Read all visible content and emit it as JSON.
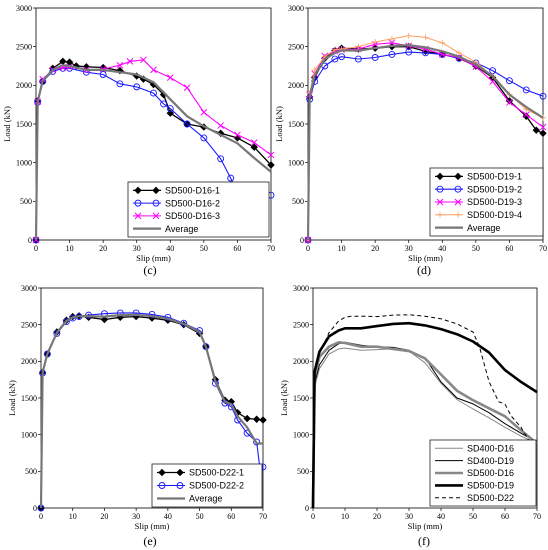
{
  "charts": [
    {
      "panel": "(c)",
      "type": "line",
      "xlabel": "Slip (mm)",
      "ylabel": "Load (kN)",
      "xlim": [
        0,
        70
      ],
      "ylim": [
        0,
        3000
      ],
      "xstep": 10,
      "ystep": 500,
      "series": [
        {
          "name": "SD500-D16-1",
          "color": "#000000",
          "marker": "diamond",
          "width": 1.3,
          "x": [
            0,
            0.5,
            2,
            5,
            8,
            10,
            12,
            15,
            20,
            25,
            30,
            32,
            35,
            38,
            40,
            45,
            50,
            55,
            60,
            65,
            70
          ],
          "y": [
            0,
            1800,
            2050,
            2220,
            2310,
            2300,
            2250,
            2240,
            2230,
            2190,
            2120,
            2080,
            2010,
            1880,
            1640,
            1500,
            1460,
            1380,
            1320,
            1200,
            970
          ]
        },
        {
          "name": "SD500-D16-2",
          "color": "#1a1aff",
          "marker": "circle",
          "width": 1.1,
          "x": [
            0,
            0.5,
            2,
            5,
            8,
            10,
            15,
            20,
            25,
            30,
            35,
            38,
            40,
            45,
            50,
            55,
            58,
            60,
            62
          ],
          "y": [
            0,
            1780,
            2050,
            2180,
            2220,
            2220,
            2170,
            2140,
            2020,
            1980,
            1900,
            1760,
            1700,
            1500,
            1320,
            1050,
            800,
            600,
            400
          ]
        },
        {
          "name": "SD500-D16-3",
          "color": "#ff00ff",
          "marker": "x",
          "width": 1.1,
          "x": [
            0,
            0.5,
            2,
            5,
            8,
            10,
            15,
            20,
            25,
            28,
            32,
            35,
            40,
            45,
            50,
            55,
            60,
            65,
            70
          ],
          "y": [
            0,
            1790,
            2080,
            2200,
            2230,
            2240,
            2200,
            2210,
            2260,
            2310,
            2330,
            2200,
            2100,
            1970,
            1650,
            1480,
            1360,
            1260,
            1100
          ]
        },
        {
          "name": "Average",
          "color": "#777777",
          "marker": "none",
          "width": 2.2,
          "x": [
            0,
            0.5,
            2,
            5,
            8,
            10,
            15,
            20,
            25,
            30,
            35,
            40,
            45,
            50,
            55,
            60,
            65,
            70
          ],
          "y": [
            0,
            1790,
            2060,
            2200,
            2260,
            2250,
            2200,
            2200,
            2170,
            2140,
            2040,
            1820,
            1600,
            1470,
            1360,
            1250,
            1060,
            880
          ]
        }
      ],
      "extra_points": [
        {
          "x": 70,
          "y": 580,
          "color": "#1a1aff"
        }
      ],
      "legend_order": [
        0,
        1,
        2,
        3
      ]
    },
    {
      "panel": "(d)",
      "type": "line",
      "xlabel": "Slip (mm)",
      "ylabel": "Load (kN)",
      "xlim": [
        0,
        70
      ],
      "ylim": [
        0,
        3000
      ],
      "xstep": 10,
      "ystep": 500,
      "series": [
        {
          "name": "SD500-D19-1",
          "color": "#000000",
          "marker": "diamond",
          "width": 1.3,
          "x": [
            0,
            0.5,
            2,
            5,
            8,
            10,
            15,
            20,
            25,
            30,
            35,
            40,
            45,
            50,
            55,
            60,
            65,
            68,
            70
          ],
          "y": [
            0,
            1850,
            2100,
            2350,
            2450,
            2480,
            2470,
            2480,
            2500,
            2500,
            2440,
            2400,
            2350,
            2250,
            2100,
            1800,
            1600,
            1420,
            1380
          ]
        },
        {
          "name": "SD500-D19-2",
          "color": "#1a1aff",
          "marker": "circle",
          "width": 1.1,
          "x": [
            0,
            0.5,
            2,
            5,
            8,
            10,
            15,
            20,
            25,
            30,
            35,
            40,
            45,
            50,
            55,
            60,
            65,
            70
          ],
          "y": [
            0,
            1820,
            2050,
            2250,
            2340,
            2370,
            2340,
            2360,
            2400,
            2430,
            2420,
            2400,
            2350,
            2290,
            2190,
            2060,
            1940,
            1860
          ]
        },
        {
          "name": "SD500-D19-3",
          "color": "#ff00ff",
          "marker": "x",
          "width": 1.1,
          "x": [
            0,
            0.5,
            2,
            5,
            8,
            10,
            15,
            20,
            25,
            30,
            35,
            40,
            45,
            50,
            55,
            60,
            65,
            70
          ],
          "y": [
            0,
            1880,
            2150,
            2380,
            2440,
            2460,
            2470,
            2530,
            2550,
            2510,
            2470,
            2400,
            2360,
            2240,
            2050,
            1780,
            1620,
            1460
          ]
        },
        {
          "name": "SD500-D19-4",
          "color": "#ffa060",
          "marker": "plus",
          "width": 1.0,
          "x": [
            0,
            0.5,
            2,
            5,
            8,
            10,
            15,
            20,
            25,
            30,
            35,
            40,
            45,
            50,
            55,
            60,
            65,
            70
          ],
          "y": [
            0,
            1900,
            2200,
            2370,
            2460,
            2470,
            2500,
            2560,
            2600,
            2640,
            2620,
            2550,
            2420,
            2300,
            2120,
            1880,
            1690,
            1580
          ]
        },
        {
          "name": "Average",
          "color": "#777777",
          "marker": "none",
          "width": 2.2,
          "x": [
            0,
            0.5,
            2,
            5,
            8,
            10,
            15,
            20,
            25,
            30,
            35,
            40,
            45,
            50,
            55,
            60,
            65,
            70
          ],
          "y": [
            0,
            1860,
            2130,
            2340,
            2420,
            2450,
            2450,
            2480,
            2510,
            2520,
            2490,
            2440,
            2370,
            2270,
            2120,
            1880,
            1720,
            1580
          ]
        }
      ],
      "extra_points": [],
      "legend_order": [
        0,
        1,
        2,
        3,
        4
      ]
    },
    {
      "panel": "(e)",
      "type": "line",
      "xlabel": "Slip (mm)",
      "ylabel": "Load (kN)",
      "xlim": [
        0,
        70
      ],
      "ylim": [
        0,
        3000
      ],
      "xstep": 10,
      "ystep": 500,
      "series": [
        {
          "name": "SD500-D22-1",
          "color": "#000000",
          "marker": "diamond",
          "width": 1.3,
          "x": [
            0,
            0.5,
            2,
            5,
            8,
            10,
            12,
            15,
            20,
            25,
            30,
            35,
            40,
            45,
            50,
            52,
            55,
            58,
            60,
            62,
            65,
            68,
            70
          ],
          "y": [
            0,
            1850,
            2100,
            2400,
            2560,
            2610,
            2620,
            2600,
            2570,
            2600,
            2610,
            2590,
            2560,
            2500,
            2380,
            2200,
            1750,
            1470,
            1450,
            1300,
            1220,
            1210,
            1200
          ]
        },
        {
          "name": "SD500-D22-2",
          "color": "#1a1aff",
          "marker": "circle",
          "width": 1.1,
          "x": [
            0,
            0.5,
            2,
            5,
            8,
            10,
            12,
            15,
            20,
            25,
            30,
            35,
            40,
            45,
            50,
            52,
            55,
            58,
            60,
            62,
            65,
            68,
            69,
            70
          ],
          "y": [
            0,
            1840,
            2100,
            2380,
            2540,
            2590,
            2610,
            2630,
            2650,
            2660,
            2660,
            2640,
            2600,
            2520,
            2420,
            2200,
            1700,
            1430,
            1380,
            1200,
            1020,
            900,
            550,
            560
          ]
        },
        {
          "name": "Average",
          "color": "#777777",
          "marker": "none",
          "width": 2.2,
          "x": [
            0,
            0.5,
            2,
            5,
            8,
            10,
            12,
            15,
            20,
            25,
            30,
            35,
            40,
            45,
            50,
            52,
            55,
            58,
            60,
            62,
            65,
            68,
            70
          ],
          "y": [
            0,
            1845,
            2100,
            2390,
            2550,
            2600,
            2615,
            2615,
            2610,
            2630,
            2635,
            2615,
            2580,
            2510,
            2400,
            2200,
            1725,
            1450,
            1415,
            1250,
            1100,
            880,
            880
          ]
        }
      ],
      "extra_points": [],
      "legend_order": [
        0,
        1,
        2
      ]
    },
    {
      "panel": "(f)",
      "type": "line",
      "xlabel": "Slip (mm)",
      "ylabel": "Load (kN)",
      "xlim": [
        0,
        70
      ],
      "ylim": [
        0,
        3000
      ],
      "xstep": 10,
      "ystep": 500,
      "series": [
        {
          "name": "SD400-D16",
          "color": "#888888",
          "marker": "none",
          "width": 1.0,
          "dash": "",
          "x": [
            0,
            0.5,
            2,
            5,
            8,
            10,
            15,
            20,
            25,
            30,
            35,
            40,
            45,
            50,
            55,
            60,
            65,
            70
          ],
          "y": [
            0,
            1650,
            1900,
            2100,
            2170,
            2180,
            2150,
            2160,
            2170,
            2140,
            1980,
            1700,
            1480,
            1350,
            1230,
            1100,
            980,
            880
          ]
        },
        {
          "name": "SD400-D19",
          "color": "#000000",
          "marker": "none",
          "width": 1.0,
          "dash": "",
          "x": [
            0,
            0.5,
            2,
            5,
            8,
            10,
            15,
            20,
            25,
            30,
            35,
            40,
            45,
            50,
            55,
            60,
            65,
            70
          ],
          "y": [
            0,
            1700,
            1950,
            2150,
            2240,
            2260,
            2220,
            2200,
            2190,
            2150,
            2050,
            1720,
            1500,
            1420,
            1300,
            1150,
            1020,
            900
          ]
        },
        {
          "name": "SD500-D16",
          "color": "#888888",
          "marker": "none",
          "width": 2.6,
          "dash": "",
          "x": [
            0,
            0.5,
            2,
            5,
            8,
            10,
            15,
            20,
            25,
            30,
            35,
            40,
            45,
            50,
            55,
            60,
            65,
            70
          ],
          "y": [
            0,
            1790,
            2060,
            2200,
            2260,
            2250,
            2200,
            2200,
            2170,
            2140,
            2040,
            1820,
            1600,
            1470,
            1360,
            1250,
            1060,
            880
          ]
        },
        {
          "name": "SD500-D19",
          "color": "#000000",
          "marker": "none",
          "width": 2.6,
          "dash": "",
          "x": [
            0,
            0.5,
            2,
            5,
            8,
            10,
            15,
            20,
            25,
            30,
            35,
            40,
            45,
            50,
            55,
            60,
            65,
            70
          ],
          "y": [
            0,
            1860,
            2130,
            2340,
            2420,
            2450,
            2450,
            2480,
            2510,
            2520,
            2490,
            2440,
            2370,
            2270,
            2120,
            1880,
            1720,
            1580
          ]
        },
        {
          "name": "SD500-D22",
          "color": "#000000",
          "marker": "none",
          "width": 1.0,
          "dash": "4,3",
          "x": [
            0,
            0.5,
            2,
            5,
            8,
            10,
            12,
            15,
            20,
            25,
            30,
            35,
            40,
            45,
            50,
            52,
            55,
            58,
            60,
            62,
            65,
            68,
            70
          ],
          "y": [
            0,
            1845,
            2100,
            2390,
            2550,
            2600,
            2615,
            2615,
            2610,
            2630,
            2635,
            2615,
            2580,
            2510,
            2400,
            2200,
            1725,
            1450,
            1415,
            1250,
            1100,
            880,
            880
          ]
        }
      ],
      "extra_points": [],
      "legend_order": [
        0,
        1,
        2,
        3,
        4
      ]
    }
  ]
}
